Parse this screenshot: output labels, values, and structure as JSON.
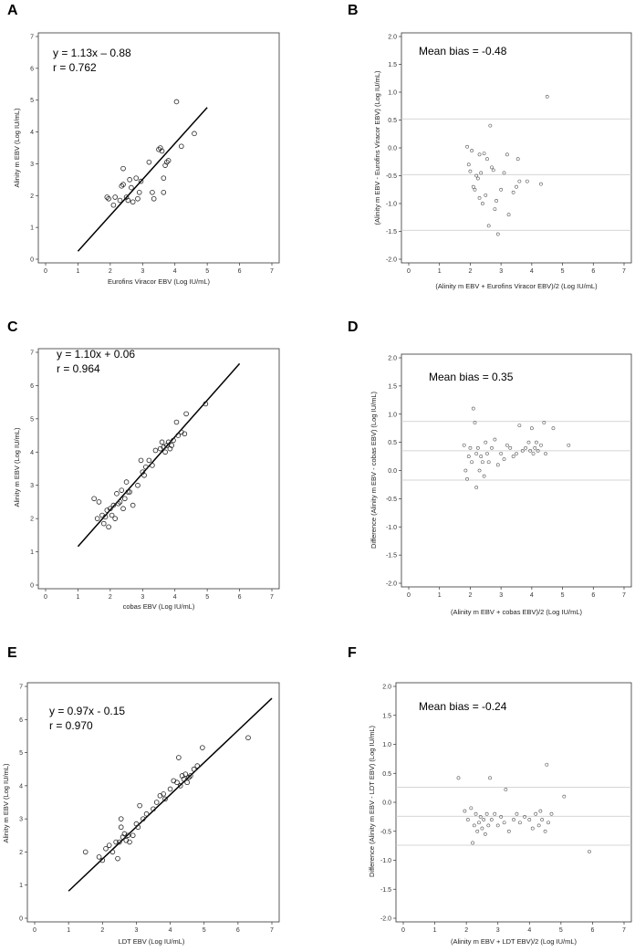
{
  "chart_data": [
    {
      "panel": "A",
      "type": "scatter",
      "xlabel": "Eurofins Viracor EBV (Log IU/mL)",
      "ylabel": "Alinity m EBV (Log IU/mL)",
      "xlim": [
        0,
        7
      ],
      "ylim": [
        0,
        7
      ],
      "xticks": [
        0,
        1,
        2,
        3,
        4,
        5,
        6,
        7
      ],
      "yticks": [
        0,
        1,
        2,
        3,
        4,
        5,
        6,
        7
      ],
      "annotations": [
        "y = 1.13x – 0.88",
        "r = 0.762"
      ],
      "regression": {
        "slope": 1.13,
        "intercept": -0.88,
        "x_range": [
          1.0,
          5.0
        ]
      },
      "points": [
        [
          1.9,
          1.95
        ],
        [
          1.95,
          1.9
        ],
        [
          2.1,
          1.7
        ],
        [
          2.15,
          1.95
        ],
        [
          2.3,
          1.85
        ],
        [
          2.35,
          2.3
        ],
        [
          2.4,
          2.85
        ],
        [
          2.4,
          2.35
        ],
        [
          2.5,
          1.95
        ],
        [
          2.55,
          1.85
        ],
        [
          2.6,
          2.5
        ],
        [
          2.65,
          2.25
        ],
        [
          2.7,
          1.8
        ],
        [
          2.8,
          2.55
        ],
        [
          2.85,
          1.9
        ],
        [
          2.9,
          2.1
        ],
        [
          2.95,
          2.45
        ],
        [
          3.2,
          3.05
        ],
        [
          3.3,
          2.1
        ],
        [
          3.35,
          1.9
        ],
        [
          3.5,
          3.45
        ],
        [
          3.55,
          3.5
        ],
        [
          3.6,
          3.4
        ],
        [
          3.65,
          2.1
        ],
        [
          3.65,
          2.55
        ],
        [
          3.7,
          2.95
        ],
        [
          3.75,
          3.05
        ],
        [
          3.8,
          3.1
        ],
        [
          4.05,
          4.95
        ],
        [
          4.2,
          3.55
        ],
        [
          4.6,
          3.95
        ]
      ]
    },
    {
      "panel": "B",
      "type": "scatter",
      "xlabel": "(Alinity m EBV + Eurofins Viracor EBV)/2 (Log IU/mL)",
      "ylabel": "(Alinity m EBV - Eurofins Viracor EBV) (Log IU/mL)",
      "xlim": [
        0,
        7
      ],
      "ylim": [
        -2.0,
        2.0
      ],
      "xticks": [
        0,
        1,
        2,
        3,
        4,
        5,
        6,
        7
      ],
      "yticks": [
        -2.0,
        -1.5,
        -1.0,
        -0.5,
        0.0,
        0.5,
        1.0,
        1.5,
        2.0
      ],
      "annotations": [
        "Mean bias = -0.48"
      ],
      "hlines": [
        0.52,
        -0.48,
        -1.48
      ],
      "points": [
        [
          1.9,
          0.02
        ],
        [
          1.95,
          -0.3
        ],
        [
          2.0,
          -0.42
        ],
        [
          2.05,
          -0.05
        ],
        [
          2.1,
          -0.7
        ],
        [
          2.15,
          -0.75
        ],
        [
          2.2,
          -0.5
        ],
        [
          2.25,
          -0.55
        ],
        [
          2.3,
          -0.9
        ],
        [
          2.3,
          -0.12
        ],
        [
          2.35,
          -0.45
        ],
        [
          2.4,
          -1.0
        ],
        [
          2.45,
          -0.1
        ],
        [
          2.5,
          -0.85
        ],
        [
          2.55,
          -0.2
        ],
        [
          2.6,
          -1.4
        ],
        [
          2.65,
          0.4
        ],
        [
          2.7,
          -0.35
        ],
        [
          2.75,
          -0.4
        ],
        [
          2.8,
          -1.1
        ],
        [
          2.85,
          -0.95
        ],
        [
          2.9,
          -1.55
        ],
        [
          3.0,
          -0.75
        ],
        [
          3.1,
          -0.45
        ],
        [
          3.2,
          -0.12
        ],
        [
          3.25,
          -1.2
        ],
        [
          3.4,
          -0.8
        ],
        [
          3.5,
          -0.7
        ],
        [
          3.55,
          -0.2
        ],
        [
          3.6,
          -0.6
        ],
        [
          3.85,
          -0.6
        ],
        [
          4.3,
          -0.65
        ],
        [
          4.5,
          0.92
        ]
      ]
    },
    {
      "panel": "C",
      "type": "scatter",
      "xlabel": "cobas EBV (Log IU/mL)",
      "ylabel": "Alinity m EBV (Log IU/mL)",
      "xlim": [
        0,
        7
      ],
      "ylim": [
        0,
        7
      ],
      "xticks": [
        0,
        1,
        2,
        3,
        4,
        5,
        6,
        7
      ],
      "yticks": [
        0,
        1,
        2,
        3,
        4,
        5,
        6,
        7
      ],
      "annotations": [
        "y = 1.10x + 0.06",
        "r = 0.964"
      ],
      "regression": {
        "slope": 1.1,
        "intercept": 0.06,
        "x_range": [
          1.0,
          6.0
        ]
      },
      "points": [
        [
          1.5,
          2.6
        ],
        [
          1.6,
          2.0
        ],
        [
          1.65,
          2.5
        ],
        [
          1.75,
          2.1
        ],
        [
          1.8,
          1.85
        ],
        [
          1.85,
          2.05
        ],
        [
          1.9,
          2.25
        ],
        [
          1.95,
          1.75
        ],
        [
          2.0,
          2.3
        ],
        [
          2.05,
          2.1
        ],
        [
          2.1,
          2.4
        ],
        [
          2.15,
          2.0
        ],
        [
          2.2,
          2.75
        ],
        [
          2.25,
          2.45
        ],
        [
          2.3,
          2.5
        ],
        [
          2.35,
          2.85
        ],
        [
          2.4,
          2.3
        ],
        [
          2.45,
          2.6
        ],
        [
          2.5,
          3.1
        ],
        [
          2.55,
          2.8
        ],
        [
          2.6,
          2.8
        ],
        [
          2.7,
          2.4
        ],
        [
          2.85,
          3.0
        ],
        [
          2.95,
          3.75
        ],
        [
          3.0,
          3.4
        ],
        [
          3.05,
          3.3
        ],
        [
          3.1,
          3.55
        ],
        [
          3.2,
          3.75
        ],
        [
          3.3,
          3.6
        ],
        [
          3.4,
          4.05
        ],
        [
          3.55,
          4.1
        ],
        [
          3.6,
          4.3
        ],
        [
          3.65,
          4.15
        ],
        [
          3.7,
          4.0
        ],
        [
          3.75,
          4.2
        ],
        [
          3.8,
          4.3
        ],
        [
          3.85,
          4.1
        ],
        [
          3.9,
          4.2
        ],
        [
          3.95,
          4.35
        ],
        [
          4.05,
          4.9
        ],
        [
          4.1,
          4.5
        ],
        [
          4.2,
          4.6
        ],
        [
          4.3,
          4.55
        ],
        [
          4.35,
          5.15
        ],
        [
          4.95,
          5.45
        ]
      ]
    },
    {
      "panel": "D",
      "type": "scatter",
      "xlabel": "(Alinity m EBV + cobas EBV)/2 (Log IU/mL)",
      "ylabel": "Difference (Alinity m EBV - cobas EBV) (Log IU/mL)",
      "xlim": [
        0,
        7
      ],
      "ylim": [
        -2.0,
        2.0
      ],
      "xticks": [
        0,
        1,
        2,
        3,
        4,
        5,
        6,
        7
      ],
      "yticks": [
        -2.0,
        -1.5,
        -1.0,
        -0.5,
        0.0,
        0.5,
        1.0,
        1.5,
        2.0
      ],
      "annotations": [
        "Mean bias = 0.35"
      ],
      "hlines": [
        0.87,
        0.35,
        -0.17
      ],
      "points": [
        [
          1.8,
          0.45
        ],
        [
          1.85,
          0.0
        ],
        [
          1.9,
          -0.15
        ],
        [
          1.95,
          0.25
        ],
        [
          2.0,
          0.4
        ],
        [
          2.05,
          0.15
        ],
        [
          2.1,
          1.1
        ],
        [
          2.15,
          0.85
        ],
        [
          2.2,
          0.3
        ],
        [
          2.2,
          -0.3
        ],
        [
          2.25,
          0.4
        ],
        [
          2.3,
          0.0
        ],
        [
          2.35,
          0.25
        ],
        [
          2.4,
          0.15
        ],
        [
          2.45,
          -0.1
        ],
        [
          2.5,
          0.5
        ],
        [
          2.55,
          0.3
        ],
        [
          2.6,
          0.15
        ],
        [
          2.7,
          0.4
        ],
        [
          2.8,
          0.55
        ],
        [
          2.9,
          0.1
        ],
        [
          3.0,
          0.3
        ],
        [
          3.1,
          0.2
        ],
        [
          3.2,
          0.45
        ],
        [
          3.3,
          0.4
        ],
        [
          3.4,
          0.25
        ],
        [
          3.5,
          0.3
        ],
        [
          3.6,
          0.8
        ],
        [
          3.7,
          0.35
        ],
        [
          3.8,
          0.4
        ],
        [
          3.9,
          0.5
        ],
        [
          3.95,
          0.35
        ],
        [
          4.0,
          0.75
        ],
        [
          4.05,
          0.3
        ],
        [
          4.1,
          0.4
        ],
        [
          4.15,
          0.5
        ],
        [
          4.2,
          0.35
        ],
        [
          4.3,
          0.45
        ],
        [
          4.4,
          0.85
        ],
        [
          4.45,
          0.3
        ],
        [
          4.7,
          0.75
        ],
        [
          5.2,
          0.45
        ]
      ]
    },
    {
      "panel": "E",
      "type": "scatter",
      "xlabel": "LDT EBV (Log IU/mL)",
      "ylabel": "Alinity m EBV (Log IU/mL)",
      "xlim": [
        0,
        7
      ],
      "ylim": [
        0,
        7
      ],
      "xticks": [
        0,
        1,
        2,
        3,
        4,
        5,
        6,
        7
      ],
      "yticks": [
        0,
        1,
        2,
        3,
        4,
        5,
        6,
        7
      ],
      "annotations": [
        "y = 0.97x - 0.15",
        "r = 0.970"
      ],
      "regression": {
        "slope": 0.97,
        "intercept": -0.15,
        "x_range": [
          1.0,
          7.0
        ]
      },
      "points": [
        [
          1.5,
          2.0
        ],
        [
          1.9,
          1.85
        ],
        [
          2.0,
          1.75
        ],
        [
          2.1,
          2.1
        ],
        [
          2.2,
          2.2
        ],
        [
          2.3,
          2.0
        ],
        [
          2.4,
          2.3
        ],
        [
          2.45,
          1.8
        ],
        [
          2.5,
          2.3
        ],
        [
          2.55,
          3.0
        ],
        [
          2.55,
          2.75
        ],
        [
          2.6,
          2.45
        ],
        [
          2.65,
          2.55
        ],
        [
          2.7,
          2.35
        ],
        [
          2.75,
          2.5
        ],
        [
          2.8,
          2.3
        ],
        [
          2.9,
          2.5
        ],
        [
          3.0,
          2.85
        ],
        [
          3.05,
          2.75
        ],
        [
          3.1,
          3.4
        ],
        [
          3.2,
          3.0
        ],
        [
          3.3,
          3.15
        ],
        [
          3.5,
          3.3
        ],
        [
          3.6,
          3.5
        ],
        [
          3.7,
          3.7
        ],
        [
          3.8,
          3.75
        ],
        [
          3.85,
          3.6
        ],
        [
          4.0,
          3.9
        ],
        [
          4.1,
          4.15
        ],
        [
          4.2,
          4.1
        ],
        [
          4.25,
          4.85
        ],
        [
          4.3,
          4.0
        ],
        [
          4.35,
          4.3
        ],
        [
          4.4,
          4.2
        ],
        [
          4.45,
          4.35
        ],
        [
          4.5,
          4.1
        ],
        [
          4.55,
          4.25
        ],
        [
          4.6,
          4.3
        ],
        [
          4.7,
          4.5
        ],
        [
          4.8,
          4.6
        ],
        [
          4.95,
          5.15
        ],
        [
          6.3,
          5.45
        ]
      ]
    },
    {
      "panel": "F",
      "type": "scatter",
      "xlabel": "(Alinity m EBV + LDT EBV)/2 (Log IU/mL)",
      "ylabel": "Difference (Alinity m EBV - LDT EBV) (Log IU/mL)",
      "xlim": [
        0,
        7
      ],
      "ylim": [
        -2.0,
        2.0
      ],
      "xticks": [
        0,
        1,
        2,
        3,
        4,
        5,
        6,
        7
      ],
      "yticks": [
        -2.0,
        -1.5,
        -1.0,
        -0.5,
        0.0,
        0.5,
        1.0,
        1.5,
        2.0
      ],
      "annotations": [
        "Mean bias = -0.24"
      ],
      "hlines": [
        0.26,
        -0.24,
        -0.74
      ],
      "points": [
        [
          1.75,
          0.42
        ],
        [
          1.95,
          -0.15
        ],
        [
          2.05,
          -0.3
        ],
        [
          2.15,
          -0.1
        ],
        [
          2.2,
          -0.7
        ],
        [
          2.25,
          -0.4
        ],
        [
          2.3,
          -0.2
        ],
        [
          2.35,
          -0.5
        ],
        [
          2.4,
          -0.35
        ],
        [
          2.45,
          -0.25
        ],
        [
          2.5,
          -0.45
        ],
        [
          2.55,
          -0.3
        ],
        [
          2.6,
          -0.55
        ],
        [
          2.65,
          -0.2
        ],
        [
          2.7,
          -0.4
        ],
        [
          2.75,
          0.42
        ],
        [
          2.8,
          -0.3
        ],
        [
          2.9,
          -0.2
        ],
        [
          3.0,
          -0.4
        ],
        [
          3.1,
          -0.25
        ],
        [
          3.2,
          -0.35
        ],
        [
          3.25,
          0.22
        ],
        [
          3.35,
          -0.5
        ],
        [
          3.5,
          -0.3
        ],
        [
          3.6,
          -0.2
        ],
        [
          3.7,
          -0.35
        ],
        [
          3.85,
          -0.25
        ],
        [
          4.0,
          -0.3
        ],
        [
          4.1,
          -0.45
        ],
        [
          4.2,
          -0.2
        ],
        [
          4.3,
          -0.4
        ],
        [
          4.35,
          -0.15
        ],
        [
          4.4,
          -0.3
        ],
        [
          4.5,
          -0.5
        ],
        [
          4.55,
          0.65
        ],
        [
          4.6,
          -0.35
        ],
        [
          4.7,
          -0.2
        ],
        [
          5.1,
          0.1
        ],
        [
          5.9,
          -0.85
        ]
      ]
    }
  ]
}
